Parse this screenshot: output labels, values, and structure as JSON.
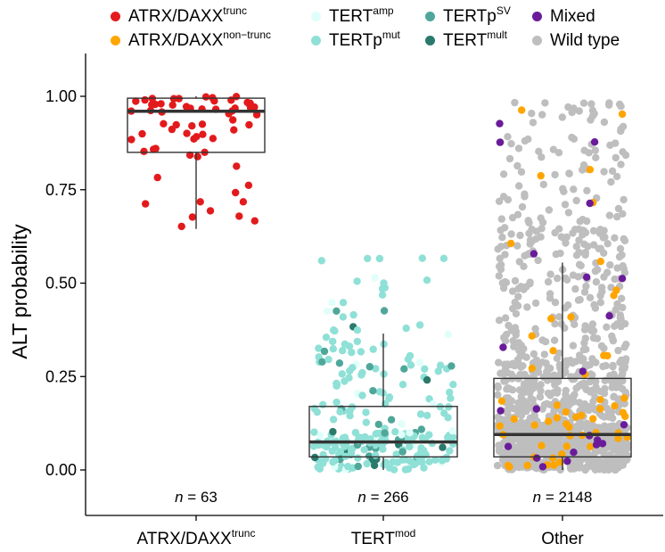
{
  "chart_data": {
    "type": "boxplot+jitter",
    "ylabel": "ALT probability",
    "ylim": [
      -0.12,
      1.05
    ],
    "yticks": [
      "0.00",
      "0.25",
      "0.50",
      "0.75",
      "1.00"
    ],
    "ytick_values": [
      0,
      0.25,
      0.5,
      0.75,
      1.0
    ],
    "grid": false,
    "legend_position": "top",
    "legend": [
      {
        "key": "atrx_trunc",
        "base": "ATRX/DAXX",
        "sup": "trunc",
        "color": "#E31A1C"
      },
      {
        "key": "atrx_nontrunc",
        "base": "ATRX/DAXX",
        "sup": "non−trunc",
        "color": "#FFA500"
      },
      {
        "key": "tert_amp",
        "base": "TERT",
        "sup": "amp",
        "color": "#E0FFFA"
      },
      {
        "key": "tertp_mut",
        "base": "TERTp",
        "sup": "mut",
        "color": "#8FE0D6"
      },
      {
        "key": "tertp_sv",
        "base": "TERTp",
        "sup": "SV",
        "color": "#4FA79A"
      },
      {
        "key": "tert_mult",
        "base": "TERT",
        "sup": "mult",
        "color": "#2A7A6C"
      },
      {
        "key": "mixed",
        "base": "Mixed",
        "sup": "",
        "color": "#6A1B9A"
      },
      {
        "key": "wildtype",
        "base": "Wild type",
        "sup": "",
        "color": "#BEBEBE"
      }
    ],
    "groups": [
      {
        "base": "ATRX/DAXX",
        "sup": "trunc",
        "n_label": "n",
        "n_text": " = 63",
        "n": 63,
        "box": {
          "min": 0.645,
          "q1": 0.85,
          "median": 0.96,
          "q3": 0.995,
          "max": 1.0
        }
      },
      {
        "base": "TERT",
        "sup": "mod",
        "n_label": "n",
        "n_text": " = 266",
        "n": 266,
        "box": {
          "min": 0.0,
          "q1": 0.035,
          "median": 0.075,
          "q3": 0.17,
          "max": 0.365
        }
      },
      {
        "base": "Other",
        "sup": "",
        "n_label": "n",
        "n_text": " = 2148",
        "n": 2148,
        "box": {
          "min": 0.0,
          "q1": 0.035,
          "median": 0.095,
          "q3": 0.245,
          "max": 0.555
        }
      }
    ]
  }
}
